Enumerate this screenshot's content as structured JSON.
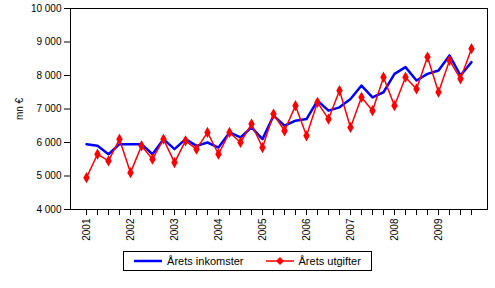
{
  "chart_data": {
    "type": "line",
    "y_label": "mn €",
    "categories": [
      "2001",
      null,
      null,
      null,
      "2002",
      null,
      null,
      null,
      "2003",
      null,
      null,
      null,
      "2004",
      null,
      null,
      null,
      "2005",
      null,
      null,
      null,
      "2006",
      null,
      null,
      null,
      "2007",
      null,
      null,
      null,
      "2008",
      null,
      null,
      null,
      "2009",
      null,
      null,
      null
    ],
    "series": [
      {
        "name": "Årets inkomster",
        "color": "#0000ff",
        "values": [
          5950,
          5900,
          5650,
          5950,
          5950,
          5950,
          5650,
          6100,
          5800,
          6100,
          5900,
          6000,
          5850,
          6300,
          6150,
          6450,
          6100,
          6800,
          6500,
          6650,
          6700,
          7250,
          6950,
          7050,
          7300,
          7700,
          7350,
          7500,
          8050,
          8250,
          7850,
          8050,
          8150,
          8600,
          8000,
          8400
        ]
      },
      {
        "name": "Årets utgifter",
        "color": "#ff0000",
        "marker": "diamond",
        "values": [
          4950,
          5650,
          5450,
          6100,
          5100,
          5900,
          5500,
          6100,
          5400,
          6050,
          5800,
          6300,
          5650,
          6300,
          6000,
          6550,
          5850,
          6850,
          6350,
          7100,
          6200,
          7200,
          6700,
          7550,
          6450,
          7350,
          6950,
          7950,
          7100,
          7950,
          7600,
          8550,
          7500,
          8450,
          7900,
          8800
        ]
      }
    ],
    "ylim": [
      4000,
      10000
    ],
    "yticks": [
      {
        "value": 4000,
        "label": "4 000"
      },
      {
        "value": 5000,
        "label": "5 000"
      },
      {
        "value": 6000,
        "label": "6 000"
      },
      {
        "value": 7000,
        "label": "7 000"
      },
      {
        "value": 8000,
        "label": "8 000"
      },
      {
        "value": 9000,
        "label": "9 000"
      },
      {
        "value": 10000,
        "label": "10 000"
      }
    ],
    "legend": "bottom"
  }
}
